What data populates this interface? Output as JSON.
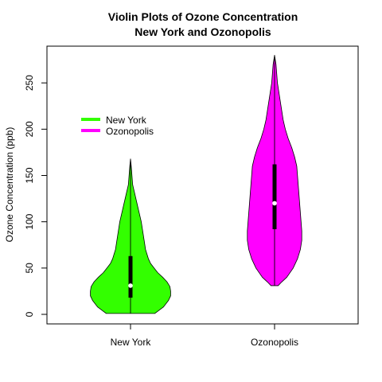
{
  "chart_data": {
    "type": "violin",
    "title": "Violin Plots of Ozone Concentration",
    "subtitle": "New York and Ozonopolis",
    "xlabel": "",
    "ylabel": "Ozone Concentration (ppb)",
    "ylim": [
      -10,
      290
    ],
    "yticks": [
      0,
      50,
      100,
      150,
      200,
      250
    ],
    "categories": [
      "New York",
      "Ozonopolis"
    ],
    "grid": false,
    "legend": {
      "placement": "top-left",
      "entries": [
        {
          "label": "New York",
          "color": "#33ff00"
        },
        {
          "label": "Ozonopolis",
          "color": "#ff00ff"
        }
      ]
    },
    "series": [
      {
        "name": "New York",
        "color": "#33ff00",
        "min": 1,
        "max": 168,
        "q1": 18,
        "median": 31,
        "q3": 63,
        "density": [
          [
            1,
            34
          ],
          [
            8,
            46
          ],
          [
            15,
            53
          ],
          [
            20,
            56
          ],
          [
            25,
            56
          ],
          [
            30,
            55
          ],
          [
            35,
            51
          ],
          [
            40,
            45
          ],
          [
            45,
            38
          ],
          [
            50,
            33
          ],
          [
            55,
            28
          ],
          [
            60,
            25
          ],
          [
            65,
            23
          ],
          [
            70,
            21
          ],
          [
            80,
            19
          ],
          [
            90,
            17
          ],
          [
            100,
            15
          ],
          [
            110,
            12
          ],
          [
            120,
            9
          ],
          [
            130,
            6
          ],
          [
            140,
            3
          ],
          [
            150,
            2
          ],
          [
            160,
            1
          ],
          [
            168,
            0
          ]
        ]
      },
      {
        "name": "Ozonopolis",
        "color": "#ff00ff",
        "min": 31,
        "max": 280,
        "q1": 92,
        "median": 120,
        "q3": 162,
        "density": [
          [
            31,
            5
          ],
          [
            35,
            10
          ],
          [
            40,
            17
          ],
          [
            50,
            26
          ],
          [
            60,
            32
          ],
          [
            70,
            36
          ],
          [
            80,
            38
          ],
          [
            90,
            38
          ],
          [
            100,
            37
          ],
          [
            110,
            36
          ],
          [
            120,
            35
          ],
          [
            130,
            34
          ],
          [
            140,
            33
          ],
          [
            150,
            32
          ],
          [
            160,
            31
          ],
          [
            170,
            28
          ],
          [
            180,
            24
          ],
          [
            190,
            19
          ],
          [
            200,
            15
          ],
          [
            210,
            12
          ],
          [
            220,
            10
          ],
          [
            230,
            8
          ],
          [
            240,
            6
          ],
          [
            250,
            4
          ],
          [
            260,
            3
          ],
          [
            270,
            2
          ],
          [
            280,
            0
          ]
        ]
      }
    ]
  }
}
